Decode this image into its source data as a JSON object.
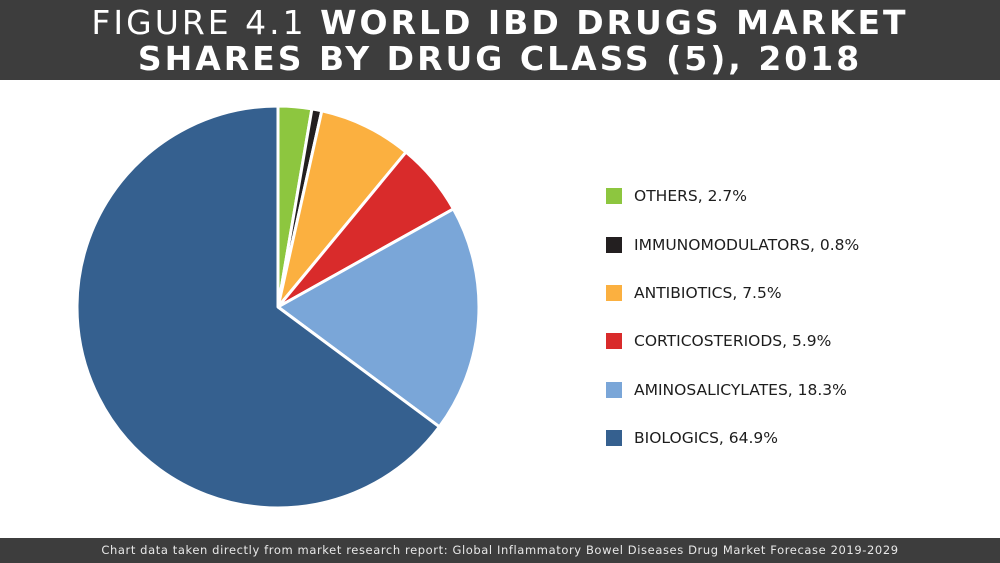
{
  "header": {
    "title_prefix": "FIGURE 4.1",
    "title_main_line1": "WORLD IBD DRUGS MARKET",
    "title_line2": "SHARES BY DRUG CLASS (5), 2018"
  },
  "chart_data": {
    "type": "pie",
    "categories": [
      "OTHERS",
      "IMMUNOMODULATORS",
      "ANTIBIOTICS",
      "CORTICOSTERIODS",
      "AMINOSALICYLATES",
      "BIOLOGICS"
    ],
    "values": [
      2.7,
      0.8,
      7.5,
      5.9,
      18.3,
      64.9
    ],
    "labels": [
      "OTHERS, 2.7%",
      "IMMUNOMODULATORS, 0.8%",
      "ANTIBIOTICS, 7.5%",
      "CORTICOSTERIODS, 5.9%",
      "AMINOSALICYLATES, 18.3%",
      "BIOLOGICS, 64.9%"
    ],
    "colors": [
      "#8dc63f",
      "#231f20",
      "#fbb040",
      "#d92b2b",
      "#7aa6d8",
      "#35608f"
    ],
    "unit": "%",
    "legend_position": "right"
  },
  "footer": {
    "note": "Chart data taken directly from market research report: Global Inflammatory Bowel Diseases Drug Market Forecase 2019-2029"
  }
}
